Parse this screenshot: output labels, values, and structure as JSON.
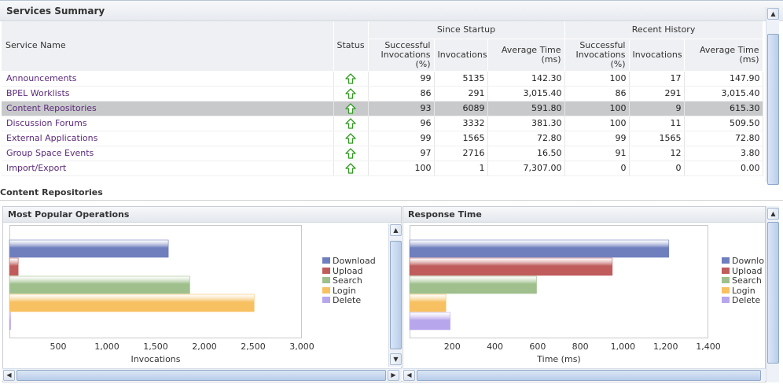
{
  "services_panel": {
    "title": "Services Summary",
    "columns": {
      "service_name": "Service Name",
      "status": "Status",
      "since_startup": "Since Startup",
      "recent_history": "Recent History",
      "successful": "Successful Invocations (%)",
      "invocations": "Invocations",
      "avg_time": "Average Time (ms)"
    },
    "rows": [
      {
        "name": "Announcements",
        "status": "up",
        "s_succ": "99",
        "s_inv": "5135",
        "s_avg": "142.30",
        "r_succ": "100",
        "r_inv": "17",
        "r_avg": "147.90"
      },
      {
        "name": "BPEL Worklists",
        "status": "up",
        "s_succ": "86",
        "s_inv": "291",
        "s_avg": "3,015.40",
        "r_succ": "86",
        "r_inv": "291",
        "r_avg": "3,015.40"
      },
      {
        "name": "Content Repositories",
        "status": "up",
        "s_succ": "93",
        "s_inv": "6089",
        "s_avg": "591.80",
        "r_succ": "100",
        "r_inv": "9",
        "r_avg": "615.30",
        "selected": true
      },
      {
        "name": "Discussion Forums",
        "status": "up",
        "s_succ": "96",
        "s_inv": "3332",
        "s_avg": "381.30",
        "r_succ": "100",
        "r_inv": "11",
        "r_avg": "509.50"
      },
      {
        "name": "External Applications",
        "status": "up",
        "s_succ": "99",
        "s_inv": "1565",
        "s_avg": "72.80",
        "r_succ": "99",
        "r_inv": "1565",
        "r_avg": "72.80"
      },
      {
        "name": "Group Space Events",
        "status": "up",
        "s_succ": "97",
        "s_inv": "2716",
        "s_avg": "16.50",
        "r_succ": "91",
        "r_inv": "12",
        "r_avg": "3.80"
      },
      {
        "name": "Import/Export",
        "status": "up",
        "s_succ": "100",
        "s_inv": "1",
        "s_avg": "7,307.00",
        "r_succ": "0",
        "r_inv": "0",
        "r_avg": "0.00"
      }
    ]
  },
  "section_title": "Content Repositories",
  "colors": {
    "Download": "#6f7fbe",
    "Upload": "#c05c5c",
    "Search": "#9fc08c",
    "Login": "#f7c060",
    "Delete": "#b8a6ec"
  },
  "chart_data": [
    {
      "type": "bar",
      "orientation": "horizontal",
      "title": "Most Popular Operations",
      "xlabel": "Invocations",
      "xlim": [
        0,
        3000
      ],
      "xticks": [
        "500",
        "1,000",
        "1,500",
        "2,000",
        "2,500",
        "3,000"
      ],
      "tick_values": [
        500,
        1000,
        1500,
        2000,
        2500,
        3000
      ],
      "categories": [
        "Download",
        "Upload",
        "Search",
        "Login",
        "Delete"
      ],
      "values": [
        1630,
        90,
        1850,
        2510,
        8
      ],
      "legend": [
        "Download",
        "Upload",
        "Search",
        "Login",
        "Delete"
      ]
    },
    {
      "type": "bar",
      "orientation": "horizontal",
      "title": "Response Time",
      "xlabel": "Time (ms)",
      "xlim": [
        0,
        1400
      ],
      "xticks": [
        "200",
        "400",
        "600",
        "800",
        "1,000",
        "1,200",
        "1,400"
      ],
      "tick_values": [
        200,
        400,
        600,
        800,
        1000,
        1200,
        1400
      ],
      "categories": [
        "Download",
        "Upload",
        "Search",
        "Login",
        "Delete"
      ],
      "values": [
        1215,
        950,
        595,
        170,
        190
      ],
      "legend": [
        "Downlo",
        "Upload",
        "Search",
        "Login",
        "Delete"
      ]
    }
  ]
}
